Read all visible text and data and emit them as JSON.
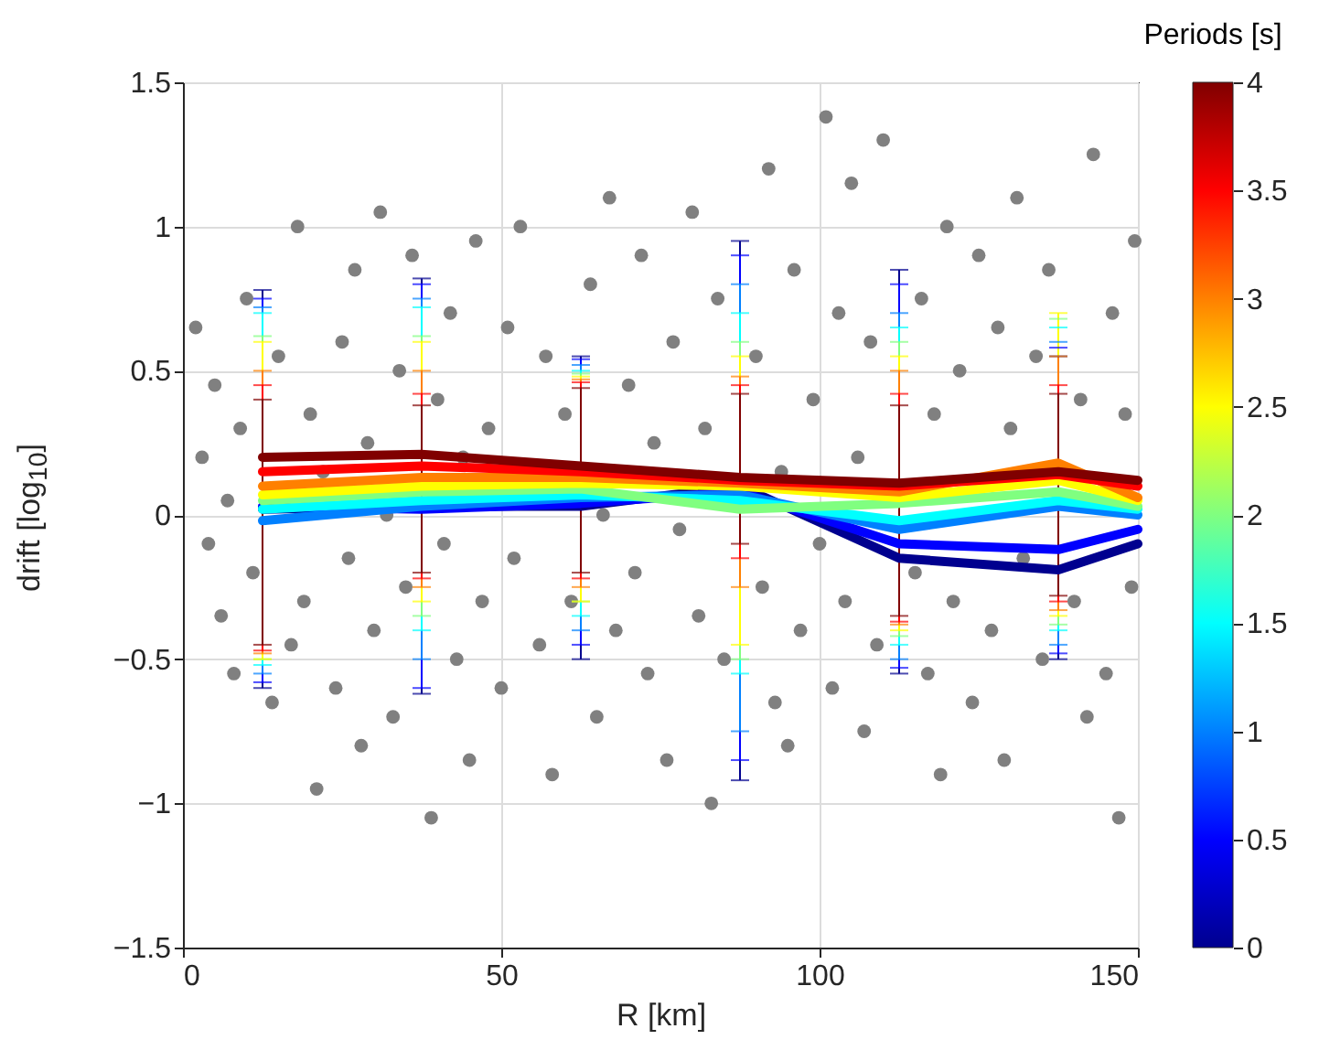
{
  "chart_data": {
    "type": "line",
    "xlabel": "R [km]",
    "ylabel": "drift [log$_{10}$]",
    "clabel": "Periods [s]",
    "clim": [
      0,
      4
    ],
    "cticks": [
      0,
      0.5,
      1,
      1.5,
      2,
      2.5,
      3,
      3.5,
      4
    ],
    "xlim": [
      0,
      150
    ],
    "xticks": [
      0,
      50,
      100,
      150
    ],
    "ylim": [
      -1.5,
      1.5
    ],
    "yticks": [
      -1.5,
      -1,
      -0.5,
      0,
      0.5,
      1,
      1.5
    ],
    "grid": true,
    "marker": "none",
    "line_style": "solid",
    "x": [
      12.5,
      37.5,
      62.5,
      87.5,
      112.5,
      137.5,
      150
    ],
    "series": [
      {
        "type": "scatter",
        "color": "#808080",
        "marker": "circle",
        "x": [
          2,
          3,
          4,
          5,
          6,
          7,
          8,
          9,
          10,
          11,
          14,
          15,
          17,
          18,
          19,
          20,
          21,
          22,
          24,
          25,
          26,
          27,
          28,
          29,
          30,
          31,
          32,
          33,
          34,
          35,
          36,
          39,
          40,
          41,
          42,
          43,
          44,
          45,
          46,
          47,
          48,
          50,
          51,
          52,
          53,
          56,
          57,
          58,
          60,
          61,
          64,
          65,
          66,
          67,
          68,
          70,
          71,
          72,
          73,
          74,
          76,
          77,
          78,
          80,
          81,
          82,
          83,
          84,
          85,
          90,
          91,
          92,
          93,
          94,
          95,
          96,
          97,
          99,
          100,
          101,
          102,
          103,
          104,
          105,
          106,
          107,
          108,
          109,
          110,
          115,
          116,
          117,
          118,
          119,
          120,
          121,
          122,
          124,
          125,
          127,
          128,
          129,
          130,
          131,
          132,
          134,
          135,
          136,
          140,
          141,
          142,
          143,
          145,
          146,
          147,
          148,
          149,
          149.5
        ],
        "values": [
          0.65,
          0.2,
          -0.1,
          0.45,
          -0.35,
          0.05,
          -0.55,
          0.3,
          0.75,
          -0.2,
          -0.65,
          0.55,
          -0.45,
          1.0,
          -0.3,
          0.35,
          -0.95,
          0.15,
          -0.6,
          0.6,
          -0.15,
          0.85,
          -0.8,
          0.25,
          -0.4,
          1.05,
          0.0,
          -0.7,
          0.5,
          -0.25,
          0.9,
          -1.05,
          0.4,
          -0.1,
          0.7,
          -0.5,
          0.2,
          -0.85,
          0.95,
          -0.3,
          0.3,
          -0.6,
          0.65,
          -0.15,
          1.0,
          -0.45,
          0.55,
          -0.9,
          0.35,
          -0.3,
          0.8,
          -0.7,
          0.0,
          1.1,
          -0.4,
          0.45,
          -0.2,
          0.9,
          -0.55,
          0.25,
          -0.85,
          0.6,
          -0.05,
          1.05,
          -0.35,
          0.3,
          -1.0,
          0.75,
          -0.5,
          0.55,
          -0.25,
          1.2,
          -0.65,
          0.15,
          -0.8,
          0.85,
          -0.4,
          0.4,
          -0.1,
          1.38,
          -0.6,
          0.7,
          -0.3,
          1.15,
          0.2,
          -0.75,
          0.6,
          -0.45,
          1.3,
          -0.2,
          0.75,
          -0.55,
          0.35,
          -0.9,
          1.0,
          -0.3,
          0.5,
          -0.65,
          0.9,
          -0.4,
          0.65,
          -0.85,
          0.3,
          1.1,
          -0.15,
          0.55,
          -0.5,
          0.85,
          -0.3,
          0.4,
          -0.7,
          1.25,
          -0.55,
          0.7,
          -1.05,
          0.35,
          -0.25,
          0.95
        ]
      },
      {
        "color": "#00008f",
        "values": [
          0.02,
          0.03,
          0.03,
          0.1,
          -0.15,
          -0.19,
          -0.1
        ],
        "errors": [
          [
            -0.6,
            0.78
          ],
          [
            -0.62,
            0.82
          ],
          [
            -0.5,
            0.55
          ],
          [
            -0.92,
            0.95
          ],
          [
            -0.55,
            0.85
          ],
          [
            -0.5,
            0.55
          ],
          null
        ]
      },
      {
        "color": "#0000ff",
        "values": [
          0.03,
          0.02,
          0.04,
          0.08,
          -0.1,
          -0.12,
          -0.05
        ],
        "errors": [
          [
            -0.58,
            0.75
          ],
          [
            -0.6,
            0.8
          ],
          [
            -0.45,
            0.54
          ],
          [
            -0.85,
            0.9
          ],
          [
            -0.53,
            0.8
          ],
          [
            -0.48,
            0.58
          ],
          null
        ]
      },
      {
        "color": "#0080ff",
        "values": [
          -0.02,
          0.03,
          0.06,
          0.07,
          -0.05,
          0.03,
          0.0
        ],
        "errors": [
          [
            -0.55,
            0.72
          ],
          [
            -0.5,
            0.75
          ],
          [
            -0.4,
            0.52
          ],
          [
            -0.75,
            0.8
          ],
          [
            -0.5,
            0.7
          ],
          [
            -0.45,
            0.6
          ],
          null
        ]
      },
      {
        "color": "#00ffff",
        "values": [
          0.02,
          0.05,
          0.07,
          0.05,
          -0.02,
          0.05,
          0.02
        ],
        "errors": [
          [
            -0.52,
            0.7
          ],
          [
            -0.4,
            0.72
          ],
          [
            -0.35,
            0.5
          ],
          [
            -0.55,
            0.7
          ],
          [
            -0.45,
            0.65
          ],
          [
            -0.4,
            0.65
          ],
          null
        ]
      },
      {
        "color": "#80ff80",
        "values": [
          0.05,
          0.08,
          0.09,
          0.02,
          0.04,
          0.08,
          0.03
        ],
        "errors": [
          [
            -0.5,
            0.62
          ],
          [
            -0.35,
            0.62
          ],
          [
            -0.3,
            0.49
          ],
          [
            -0.5,
            0.6
          ],
          [
            -0.42,
            0.6
          ],
          [
            -0.38,
            0.68
          ],
          null
        ]
      },
      {
        "color": "#ffff00",
        "values": [
          0.07,
          0.1,
          0.11,
          0.1,
          0.06,
          0.12,
          0.05
        ],
        "errors": [
          [
            -0.5,
            0.6
          ],
          [
            -0.3,
            0.6
          ],
          [
            -0.3,
            0.48
          ],
          [
            -0.45,
            0.55
          ],
          [
            -0.4,
            0.55
          ],
          [
            -0.35,
            0.7
          ],
          null
        ]
      },
      {
        "color": "#ff8000",
        "values": [
          0.1,
          0.13,
          0.13,
          0.11,
          0.08,
          0.18,
          0.06
        ],
        "errors": [
          [
            -0.48,
            0.5
          ],
          [
            -0.25,
            0.5
          ],
          [
            -0.25,
            0.47
          ],
          [
            -0.25,
            0.48
          ],
          [
            -0.38,
            0.5
          ],
          [
            -0.33,
            0.55
          ],
          null
        ]
      },
      {
        "color": "#ff0000",
        "values": [
          0.15,
          0.17,
          0.15,
          0.12,
          0.1,
          0.14,
          0.1
        ],
        "errors": [
          [
            -0.47,
            0.45
          ],
          [
            -0.22,
            0.42
          ],
          [
            -0.22,
            0.46
          ],
          [
            -0.15,
            0.45
          ],
          [
            -0.37,
            0.42
          ],
          [
            -0.3,
            0.45
          ],
          null
        ]
      },
      {
        "color": "#800000",
        "values": [
          0.2,
          0.21,
          0.17,
          0.13,
          0.11,
          0.15,
          0.12
        ],
        "errors": [
          [
            -0.45,
            0.4
          ],
          [
            -0.2,
            0.38
          ],
          [
            -0.2,
            0.44
          ],
          [
            -0.1,
            0.42
          ],
          [
            -0.35,
            0.38
          ],
          [
            -0.28,
            0.42
          ],
          null
        ]
      }
    ]
  }
}
